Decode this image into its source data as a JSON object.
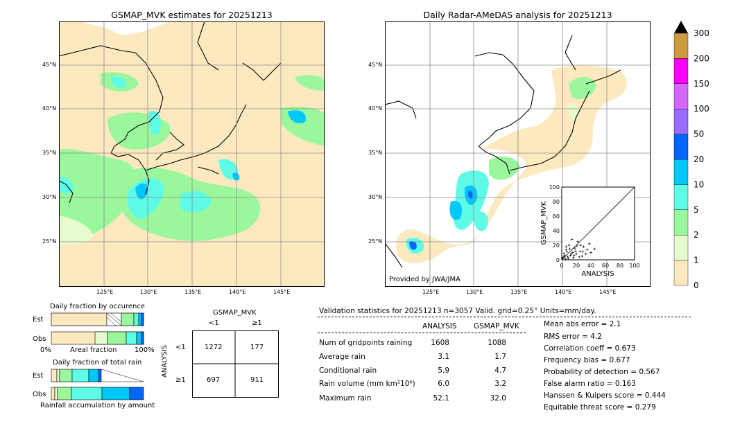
{
  "left_map": {
    "title": "GSMAP_MVK estimates for 20251213",
    "lat_labels": [
      "45°N",
      "40°N",
      "35°N",
      "30°N",
      "25°N"
    ],
    "lon_labels": [
      "125°E",
      "130°E",
      "135°E",
      "140°E",
      "145°E"
    ]
  },
  "right_map": {
    "title": "Daily Radar-AMeDAS analysis for 20251213",
    "lat_labels": [
      "45°N",
      "40°N",
      "35°N",
      "30°N",
      "25°N"
    ],
    "lon_labels": [
      "125°E",
      "130°E",
      "135°E",
      "140°E",
      "145°E"
    ],
    "credit": "Provided by JWA/JMA"
  },
  "colorbar": {
    "levels": [
      "0",
      "1",
      "2",
      "5",
      "10",
      "20",
      "50",
      "100",
      "150",
      "200",
      "300"
    ],
    "colors": [
      "#fde9bf",
      "#e6fccf",
      "#9bf79b",
      "#5efce6",
      "#00c8fc",
      "#0066fc",
      "#9b6cfc",
      "#d766fc",
      "#fc00fc",
      "#cd9a3f"
    ],
    "extend_color": "#000000"
  },
  "scatter_inset": {
    "xlabel": "ANALYSIS",
    "ylabel": "GSMAP_MVK",
    "ticks": [
      "0",
      "20",
      "40",
      "60",
      "80",
      "100"
    ],
    "range": [
      0,
      100
    ]
  },
  "occurrence": {
    "title": "Daily fraction by occurence",
    "rows": [
      "Est",
      "Obs"
    ],
    "axis_left": "0%",
    "axis_mid": "Areal fraction",
    "axis_right": "100%"
  },
  "total_rain": {
    "title": "Daily fraction of total rain",
    "rows": [
      "Est",
      "Obs"
    ],
    "caption": "Rainfall accumulation by amount"
  },
  "contingency": {
    "col_header": "GSMAP_MVK",
    "cols": [
      "<1",
      "≥1"
    ],
    "row_header": "ANALYSIS",
    "rows": [
      "<1",
      "≥1"
    ],
    "cells": [
      [
        "1272",
        "177"
      ],
      [
        "697",
        "911"
      ]
    ]
  },
  "validation": {
    "header": "Validation statistics for 20251213  n=3057 Valid. grid=0.25° Units=mm/day.",
    "col_analysis": "ANALYSIS",
    "col_gsmap": "GSMAP_MVK",
    "rows": [
      {
        "label": "Num of gridpoints raining",
        "analysis": "1608",
        "gsmap": "1088"
      },
      {
        "label": "Average rain",
        "analysis": "3.1",
        "gsmap": "1.7"
      },
      {
        "label": "Conditional rain",
        "analysis": "5.9",
        "gsmap": "4.7"
      },
      {
        "label": "Rain volume (mm km²10⁶)",
        "analysis": "6.0",
        "gsmap": "3.2"
      },
      {
        "label": "Maximum rain",
        "analysis": "52.1",
        "gsmap": "32.0"
      }
    ],
    "scores": [
      "Mean abs error =    2.1",
      "RMS error =    4.2",
      "Correlation coeff =  0.673",
      "Frequency bias =  0.677",
      "Probability of detection =  0.567",
      "False alarm ratio =  0.163",
      "Hanssen & Kuipers score =  0.444",
      "Equitable threat score =  0.279"
    ]
  }
}
